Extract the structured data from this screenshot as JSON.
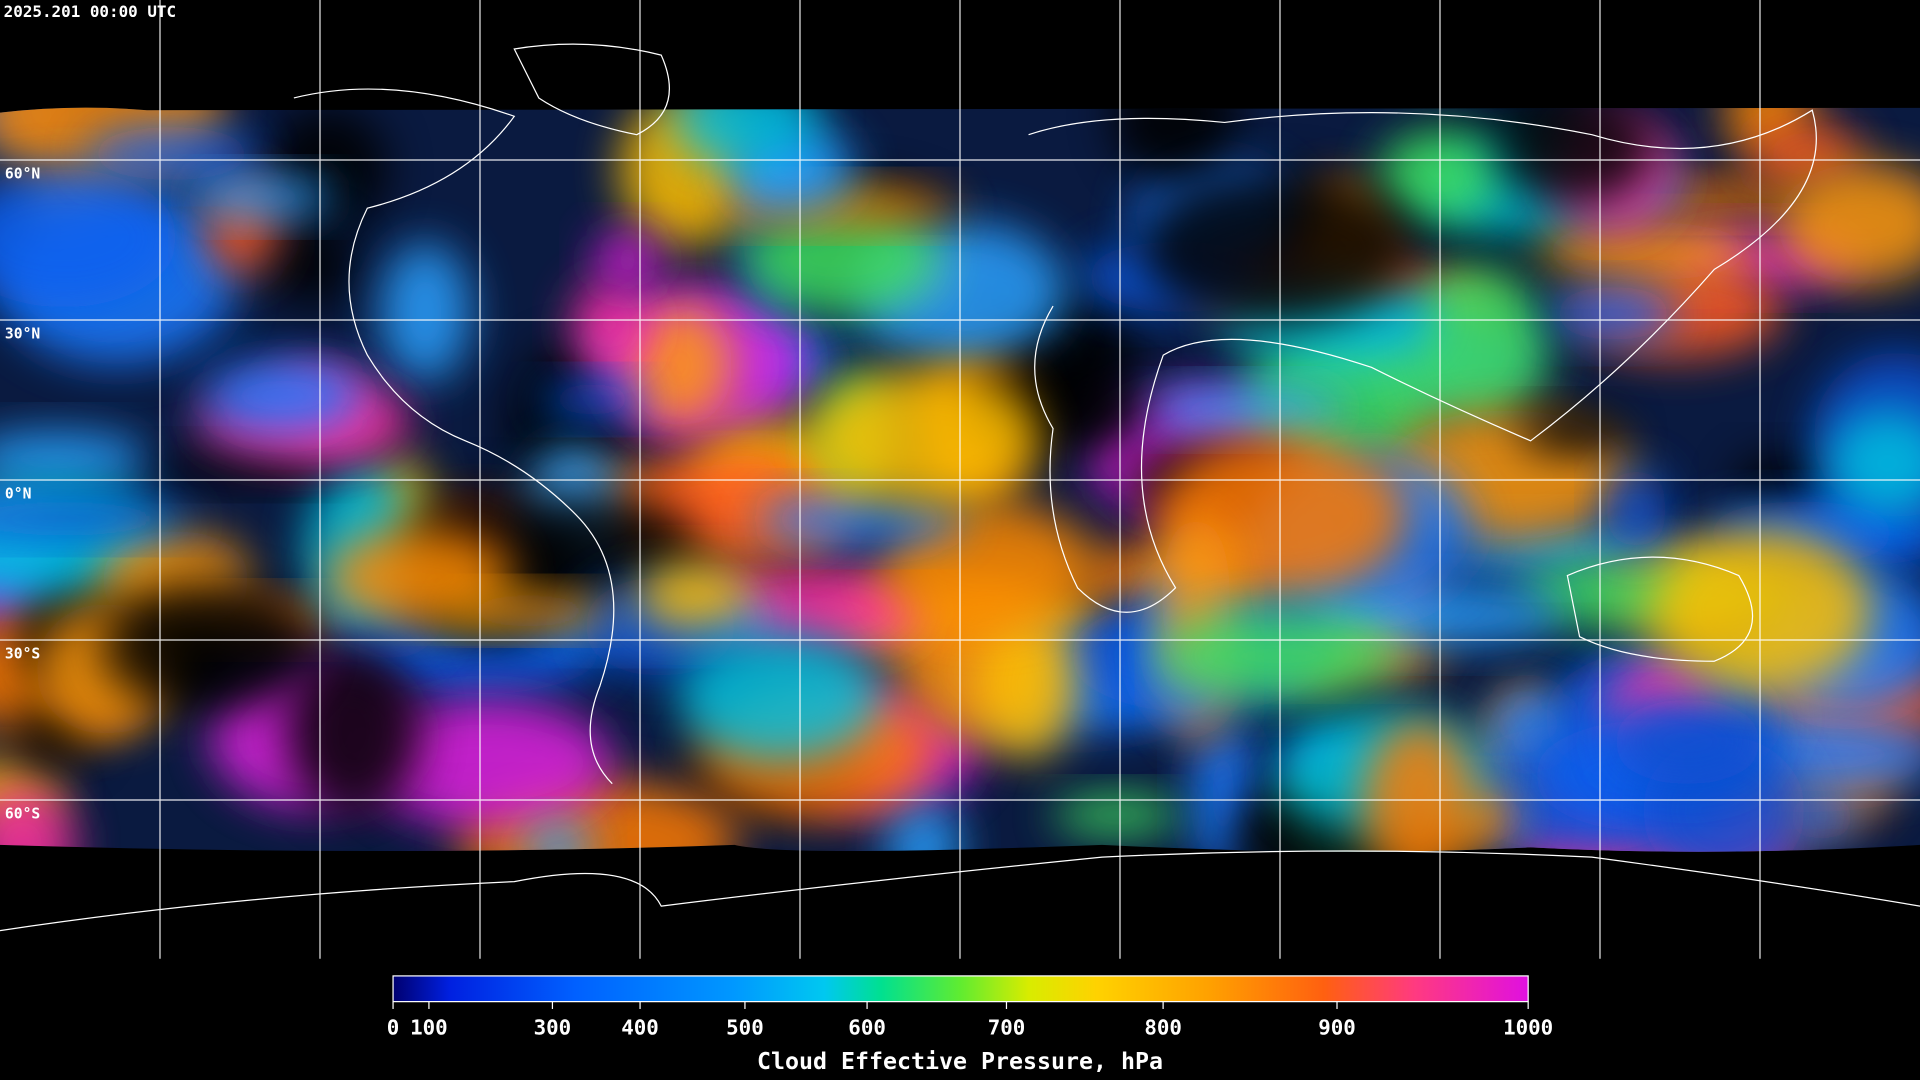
{
  "header": {
    "timestamp": "2025.201 00:00 UTC"
  },
  "map": {
    "lat_labels": [
      "60°N",
      "30°N",
      "0°N",
      "30°S",
      "60°S"
    ]
  },
  "colorbar": {
    "title": "Cloud Effective Pressure, hPa",
    "range": [
      0,
      1000
    ],
    "ticks": [
      0,
      100,
      300,
      400,
      500,
      600,
      700,
      800,
      900,
      1000
    ]
  }
}
